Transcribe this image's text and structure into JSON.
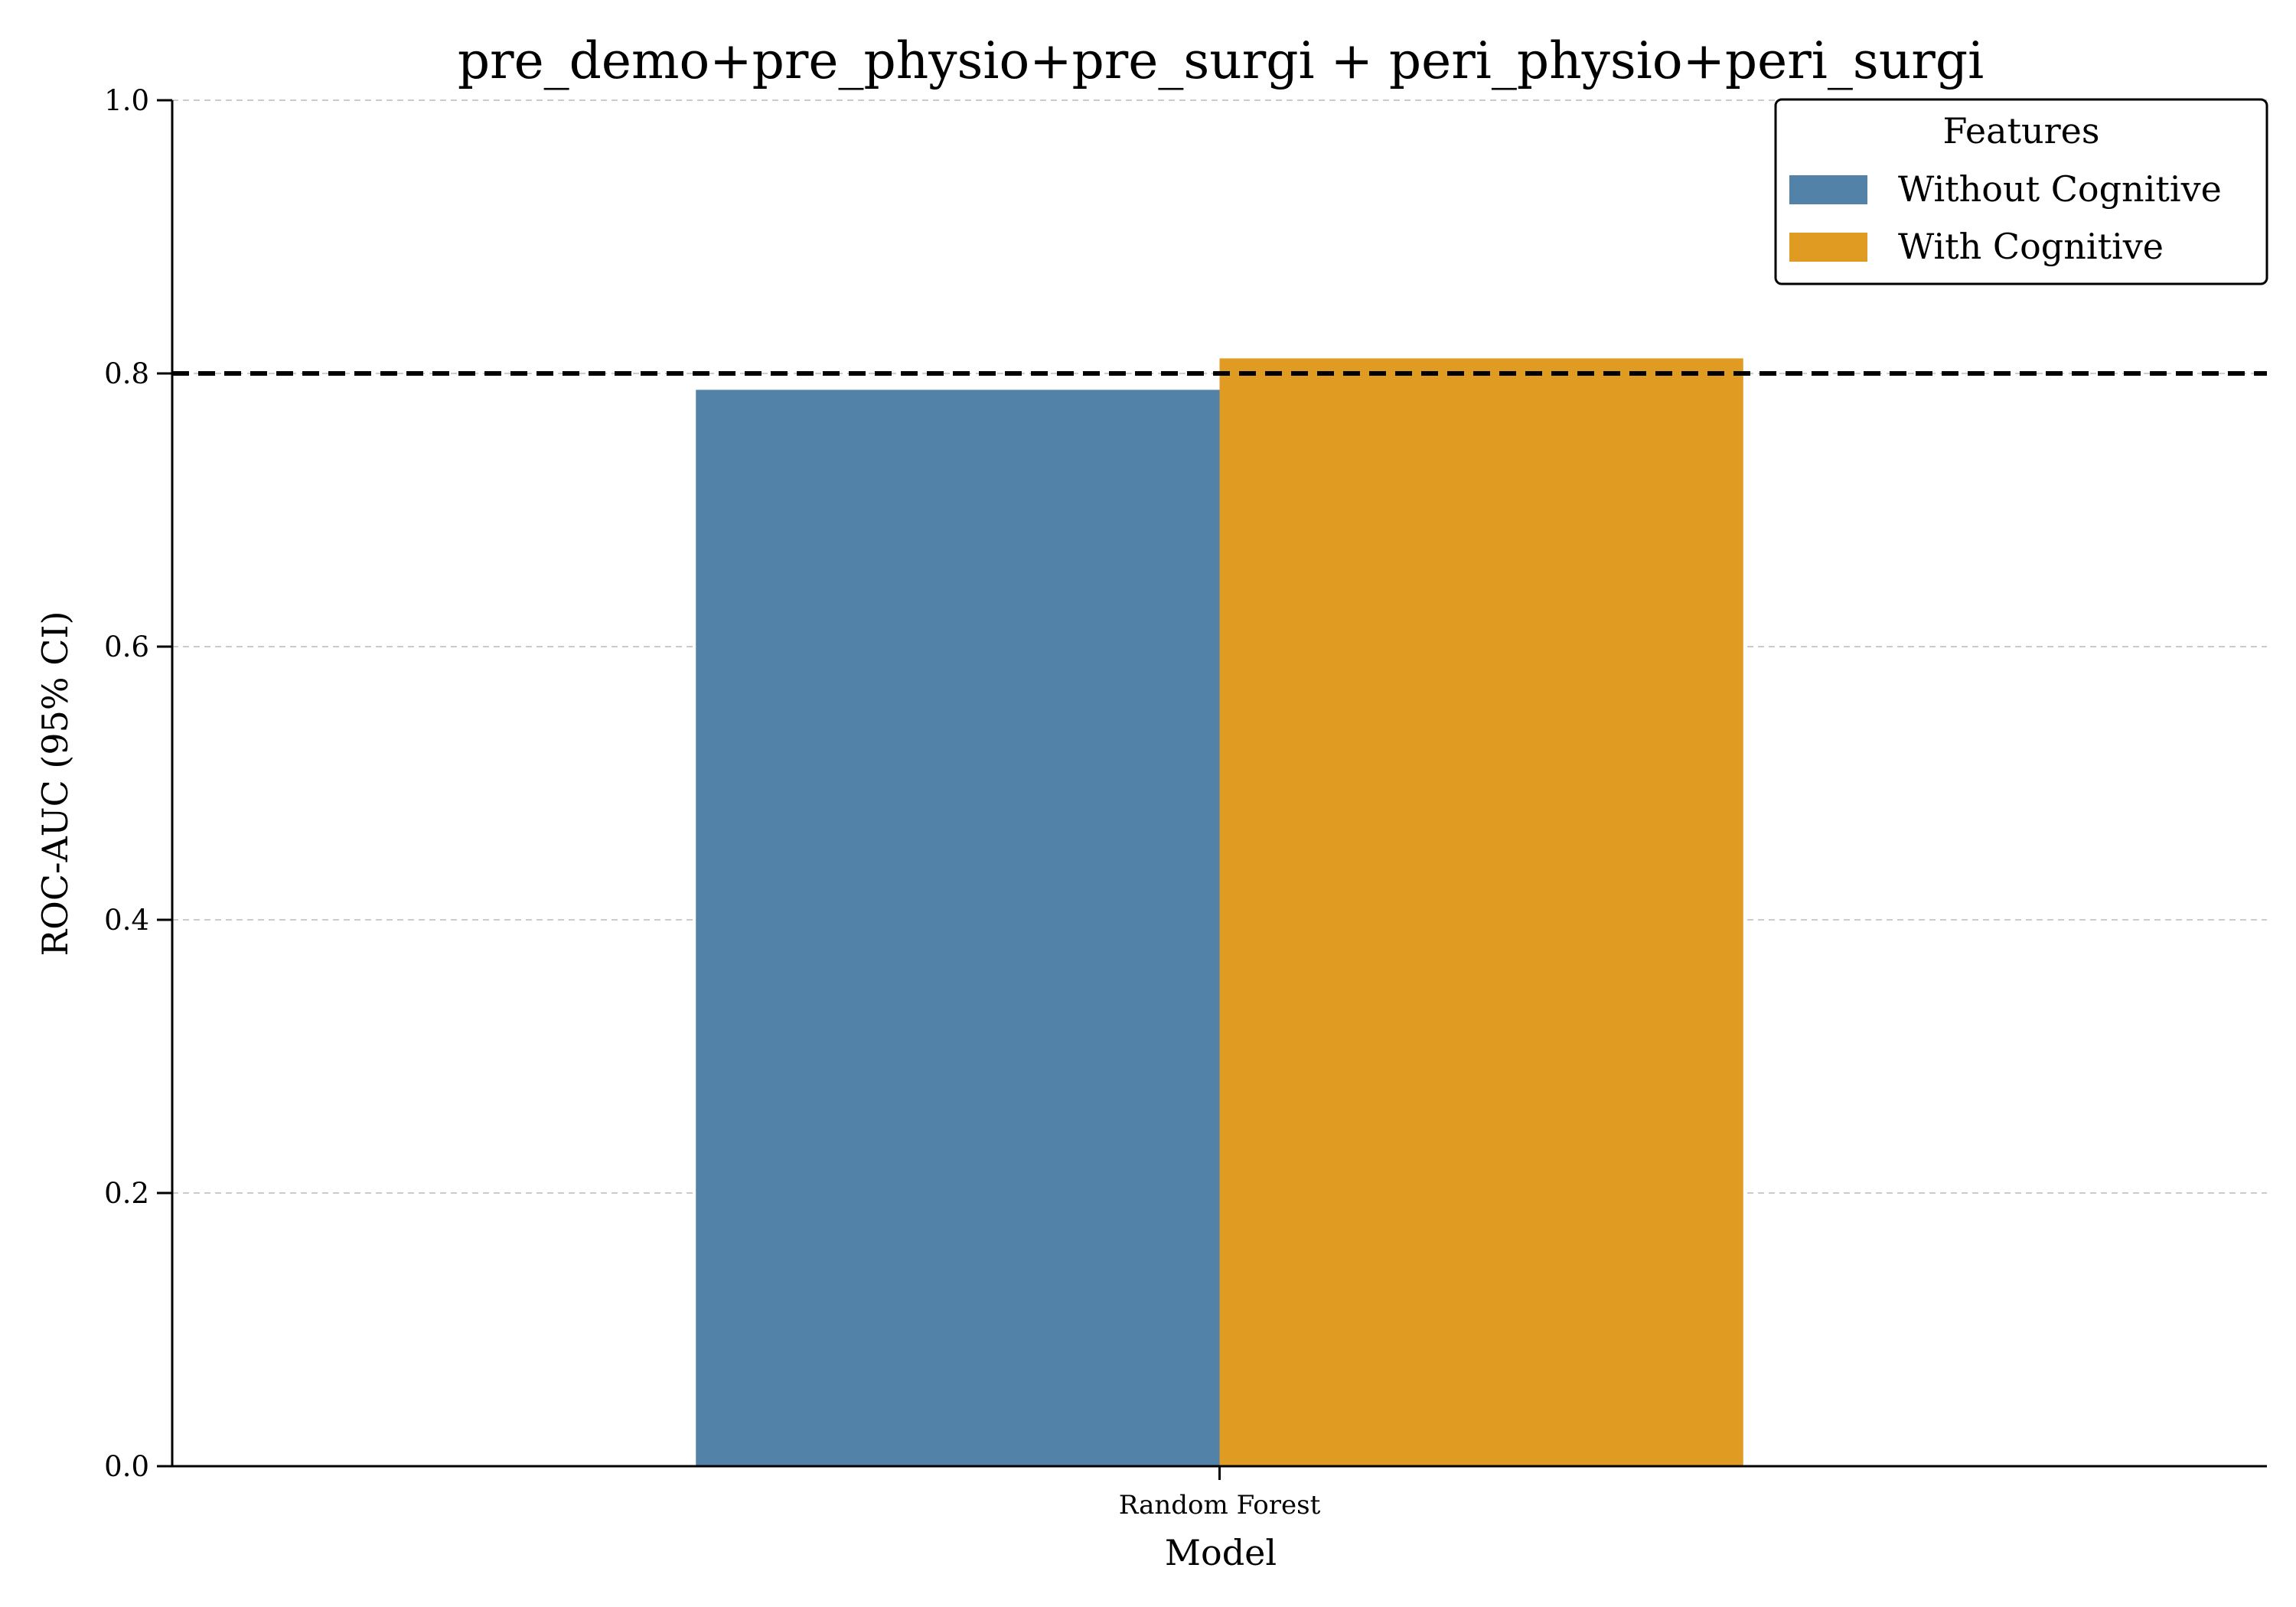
{
  "chart_data": {
    "type": "bar",
    "title": "pre_demo+pre_physio+pre_surgi + peri_physio+peri_surgi",
    "xlabel": "Model",
    "ylabel": "ROC-AUC (95% CI)",
    "categories": [
      "Random Forest"
    ],
    "series": [
      {
        "name": "Without Cognitive",
        "values": [
          0.788
        ],
        "color": "#5382a8"
      },
      {
        "name": "With Cognitive",
        "values": [
          0.811
        ],
        "color": "#df9b22"
      }
    ],
    "ylim": [
      0,
      1.0
    ],
    "yticks": [
      "0.0",
      "0.2",
      "0.4",
      "0.6",
      "0.8",
      "1.0"
    ],
    "reference_line": {
      "y": 0.8,
      "style": "dashed",
      "color": "#000000"
    },
    "grid": {
      "y": true,
      "style": "dashed"
    },
    "legend": {
      "title": "Features",
      "position": "top-right"
    }
  }
}
